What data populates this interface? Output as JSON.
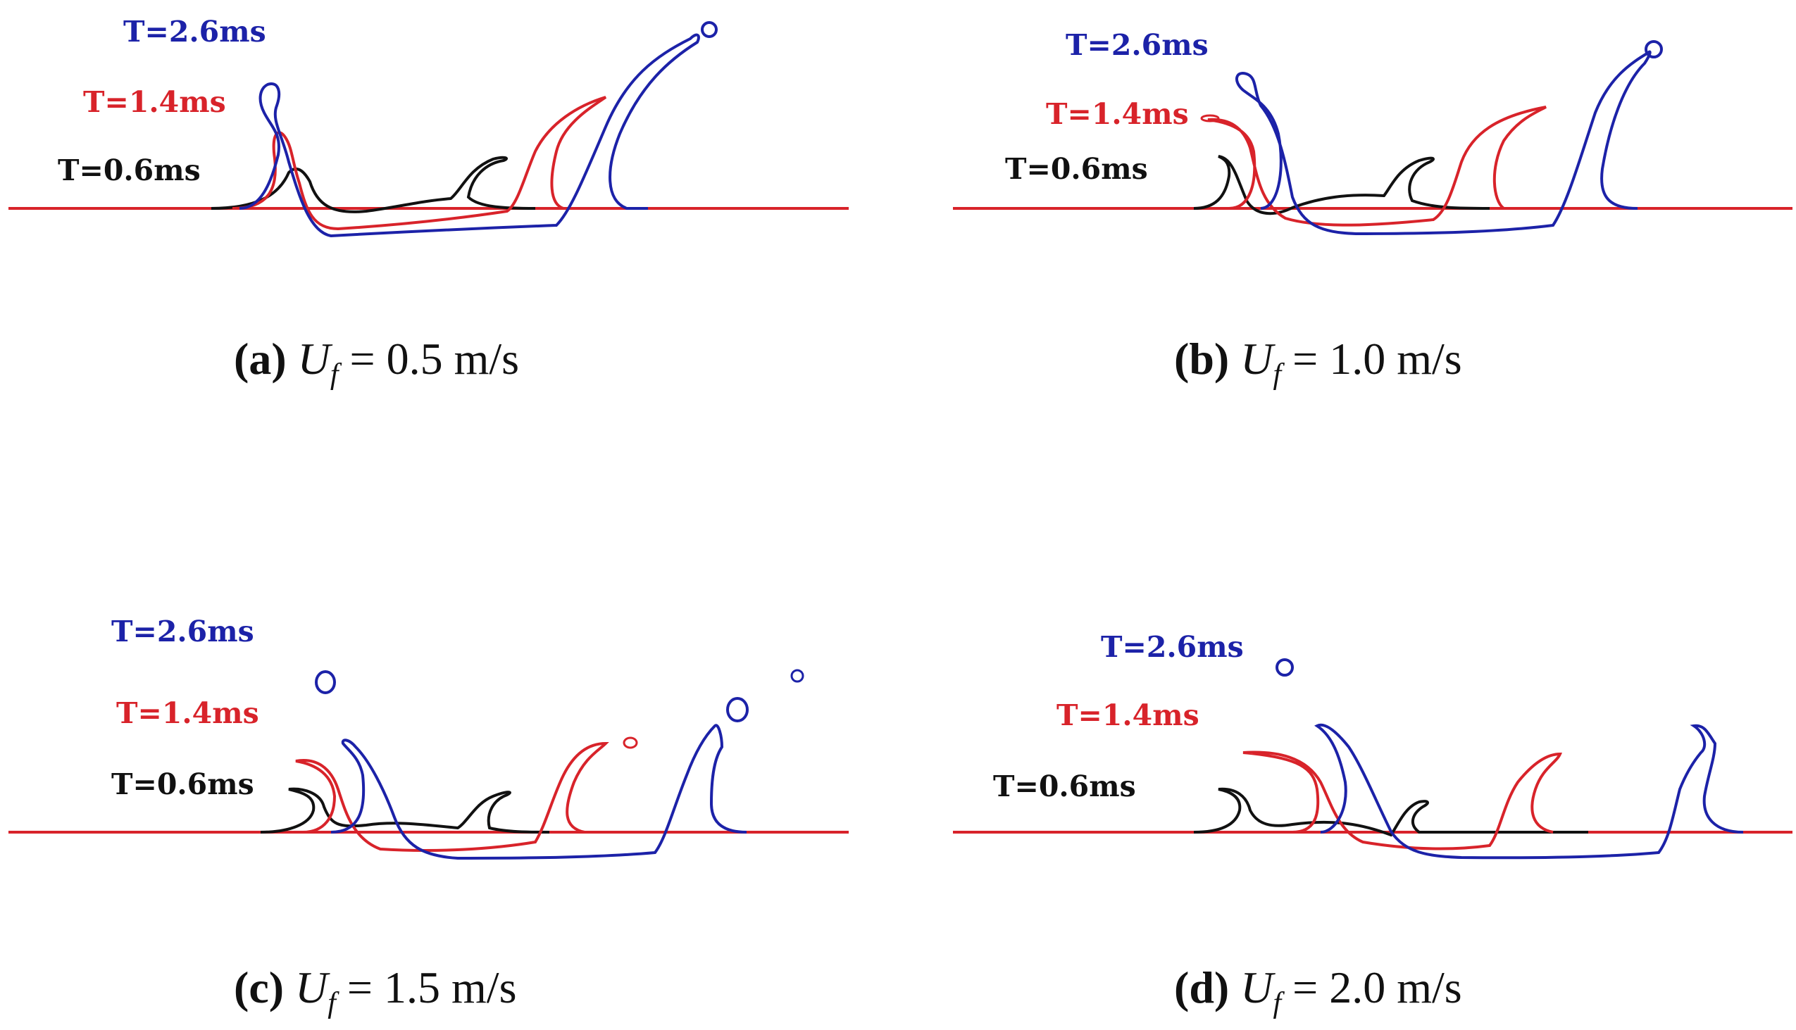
{
  "figure": {
    "colors": {
      "t06": "#111111",
      "t14": "#d8232a",
      "t26": "#1c22a8",
      "wall": "#d8232a"
    },
    "panels": [
      {
        "id": "a",
        "labels": {
          "t26": "T=2.6ms",
          "t14": "T=1.4ms",
          "t06": "T=0.6ms"
        },
        "caption": {
          "letter": "(a)",
          "symbol": "U",
          "subscript": "f",
          "eq": "=",
          "value": "0.5",
          "unit": "m/s"
        }
      },
      {
        "id": "b",
        "labels": {
          "t26": "T=2.6ms",
          "t14": "T=1.4ms",
          "t06": "T=0.6ms"
        },
        "caption": {
          "letter": "(b)",
          "symbol": "U",
          "subscript": "f",
          "eq": "=",
          "value": "1.0",
          "unit": "m/s"
        }
      },
      {
        "id": "c",
        "labels": {
          "t26": "T=2.6ms",
          "t14": "T=1.4ms",
          "t06": "T=0.6ms"
        },
        "caption": {
          "letter": "(c)",
          "symbol": "U",
          "subscript": "f",
          "eq": "=",
          "value": "1.5",
          "unit": "m/s"
        }
      },
      {
        "id": "d",
        "labels": {
          "t26": "T=2.6ms",
          "t14": "T=1.4ms",
          "t06": "T=0.6ms"
        },
        "caption": {
          "letter": "(d)",
          "symbol": "U",
          "subscript": "f",
          "eq": "=",
          "value": "2.0",
          "unit": "m/s"
        }
      }
    ]
  }
}
